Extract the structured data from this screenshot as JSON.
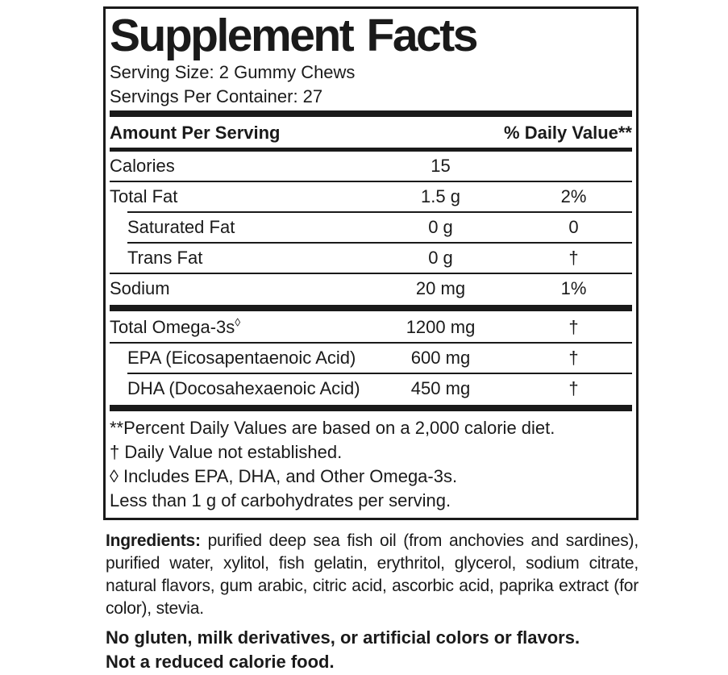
{
  "label": {
    "title": "Supplement Facts",
    "serving_size": "Serving Size: 2 Gummy Chews",
    "servings_per_container": "Servings Per Container: 27",
    "header": {
      "amount_per_serving": "Amount Per Serving",
      "daily_value": "% Daily Value**"
    },
    "rows": [
      {
        "name": "Calories",
        "amount": "15",
        "dv": ""
      },
      {
        "name": "Total Fat",
        "amount": "1.5 g",
        "dv": "2%"
      },
      {
        "name": "Saturated Fat",
        "amount": "0 g",
        "dv": "0"
      },
      {
        "name": "Trans Fat",
        "amount": "0 g",
        "dv": "†"
      },
      {
        "name": "Sodium",
        "amount": "20 mg",
        "dv": "1%"
      },
      {
        "name": "Total Omega-3s",
        "symbol": "◊",
        "amount": "1200 mg",
        "dv": "†"
      },
      {
        "name": "EPA (Eicosapentaenoic Acid)",
        "amount": "600 mg",
        "dv": "†"
      },
      {
        "name": "DHA (Docosahexaenoic Acid)",
        "amount": "450 mg",
        "dv": "†"
      }
    ],
    "footnotes": [
      "**Percent Daily Values are based on a 2,000 calorie diet.",
      "† Daily Value not established.",
      "◊ Includes EPA, DHA, and Other Omega-3s.",
      "Less than 1 g of carbohydrates per serving."
    ]
  },
  "ingredients": {
    "label": "Ingredients:",
    "text": " purified deep sea fish oil (from anchovies and sardines), purified water, xylitol, fish gelatin, erythritol, glycerol, sodium citrate, natural flavors, gum arabic, citric acid, ascorbic acid, paprika extract (for color), stevia."
  },
  "claims": [
    "No gluten, milk derivatives, or artificial colors or flavors.",
    "Not a reduced calorie food."
  ],
  "colors": {
    "ink": "#1a1a1a",
    "background": "#ffffff"
  }
}
